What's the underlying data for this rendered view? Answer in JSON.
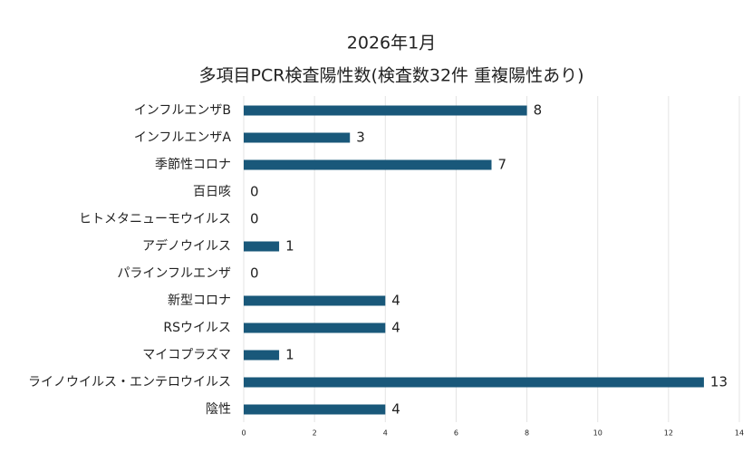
{
  "chart_data": {
    "type": "bar",
    "orientation": "horizontal",
    "title": "2026年1月",
    "subtitle": "多項目PCR検査陽性数(検査数32件 重複陽性あり)",
    "categories": [
      "インフルエンザB",
      "インフルエンザA",
      "季節性コロナ",
      "百日咳",
      "ヒトメタニューモウイルス",
      "アデノウイルス",
      "パラインフルエンザ",
      "新型コロナ",
      "RSウイルス",
      "マイコプラズマ",
      "ライノウイルス・エンテロウイルス",
      "陰性"
    ],
    "values": [
      8,
      3,
      7,
      0,
      0,
      1,
      0,
      4,
      4,
      1,
      13,
      4
    ],
    "color": "#19587a",
    "xlim": [
      0,
      14
    ],
    "xticks": [
      0,
      2,
      4,
      6,
      8,
      10,
      12,
      14
    ],
    "grid": true
  }
}
